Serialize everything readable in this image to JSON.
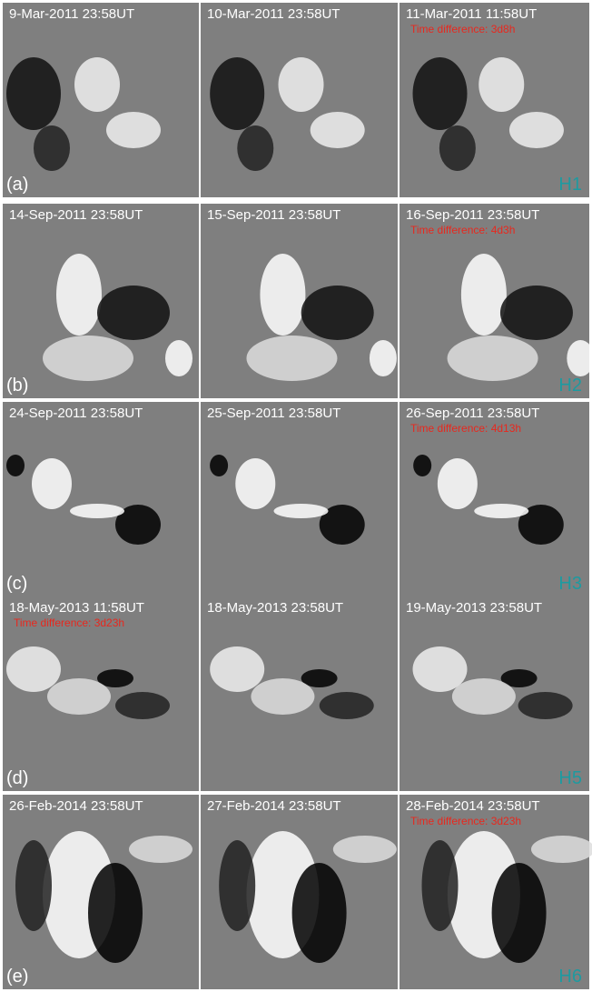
{
  "rows": [
    {
      "label": "(a)",
      "tag": "H1",
      "panels": [
        {
          "date": "9-Mar-2011 23:58UT"
        },
        {
          "date": "10-Mar-2011 23:58UT"
        },
        {
          "date": "11-Mar-2011 11:58UT",
          "note": "Time difference: 3d8h"
        }
      ]
    },
    {
      "label": "(b)",
      "tag": "H2",
      "panels": [
        {
          "date": "14-Sep-2011 23:58UT"
        },
        {
          "date": "15-Sep-2011 23:58UT"
        },
        {
          "date": "16-Sep-2011 23:58UT",
          "note": "Time difference: 4d3h"
        }
      ]
    },
    {
      "label": "(c)",
      "tag": "H3",
      "panels": [
        {
          "date": "24-Sep-2011 23:58UT"
        },
        {
          "date": "25-Sep-2011 23:58UT"
        },
        {
          "date": "26-Sep-2011 23:58UT",
          "note": "Time difference: 4d13h"
        }
      ]
    },
    {
      "label": "(d)",
      "tag": "H5",
      "panels": [
        {
          "date": "18-May-2013 11:58UT",
          "note": "Time difference: 3d23h"
        },
        {
          "date": "18-May-2013 23:58UT"
        },
        {
          "date": "19-May-2013 23:58UT"
        }
      ]
    },
    {
      "label": "(e)",
      "tag": "H6",
      "panels": [
        {
          "date": "26-Feb-2014 23:58UT"
        },
        {
          "date": "27-Feb-2014 23:58UT"
        },
        {
          "date": "28-Feb-2014 23:58UT",
          "note": "Time difference: 3d23h"
        }
      ]
    }
  ]
}
